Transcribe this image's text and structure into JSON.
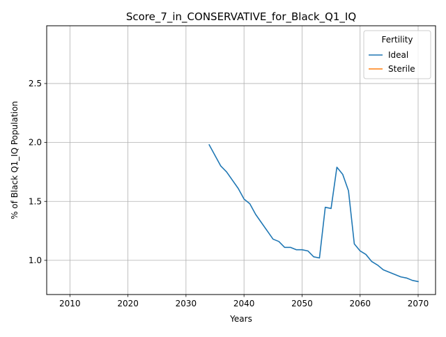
{
  "chart_data": {
    "type": "line",
    "title": "Score_7_in_CONSERVATIVE_for_Black_Q1_IQ",
    "xlabel": "Years",
    "ylabel": "% of Black Q1_IQ Population",
    "xlim": [
      2006,
      2073
    ],
    "ylim": [
      0.71,
      2.99
    ],
    "xticks": [
      2010,
      2020,
      2030,
      2040,
      2050,
      2060,
      2070
    ],
    "yticks": [
      1.0,
      1.5,
      2.0,
      2.5
    ],
    "ytick_labels": [
      "1.0",
      "1.5",
      "2.0",
      "2.5"
    ],
    "grid": true,
    "legend": {
      "title": "Fertility",
      "position": "top-right"
    },
    "series": [
      {
        "name": "Ideal",
        "color": "#1f77b4",
        "x": [
          2034,
          2035,
          2036,
          2037,
          2038,
          2039,
          2040,
          2041,
          2042,
          2043,
          2044,
          2045,
          2046,
          2047,
          2048,
          2049,
          2050,
          2051,
          2052,
          2053,
          2054,
          2055,
          2056,
          2057,
          2058,
          2059,
          2060,
          2061,
          2062,
          2063,
          2064,
          2065,
          2066,
          2067,
          2068,
          2069,
          2070
        ],
        "values": [
          1.98,
          1.89,
          1.8,
          1.75,
          1.68,
          1.61,
          1.52,
          1.48,
          1.39,
          1.32,
          1.25,
          1.18,
          1.16,
          1.11,
          1.11,
          1.09,
          1.09,
          1.08,
          1.03,
          1.02,
          1.45,
          1.44,
          1.79,
          1.73,
          1.59,
          1.14,
          1.08,
          1.05,
          0.99,
          0.96,
          0.92,
          0.9,
          0.88,
          0.86,
          0.85,
          0.83,
          0.82
        ]
      },
      {
        "name": "Sterile",
        "color": "#ff7f0e",
        "x": [],
        "values": []
      }
    ]
  }
}
